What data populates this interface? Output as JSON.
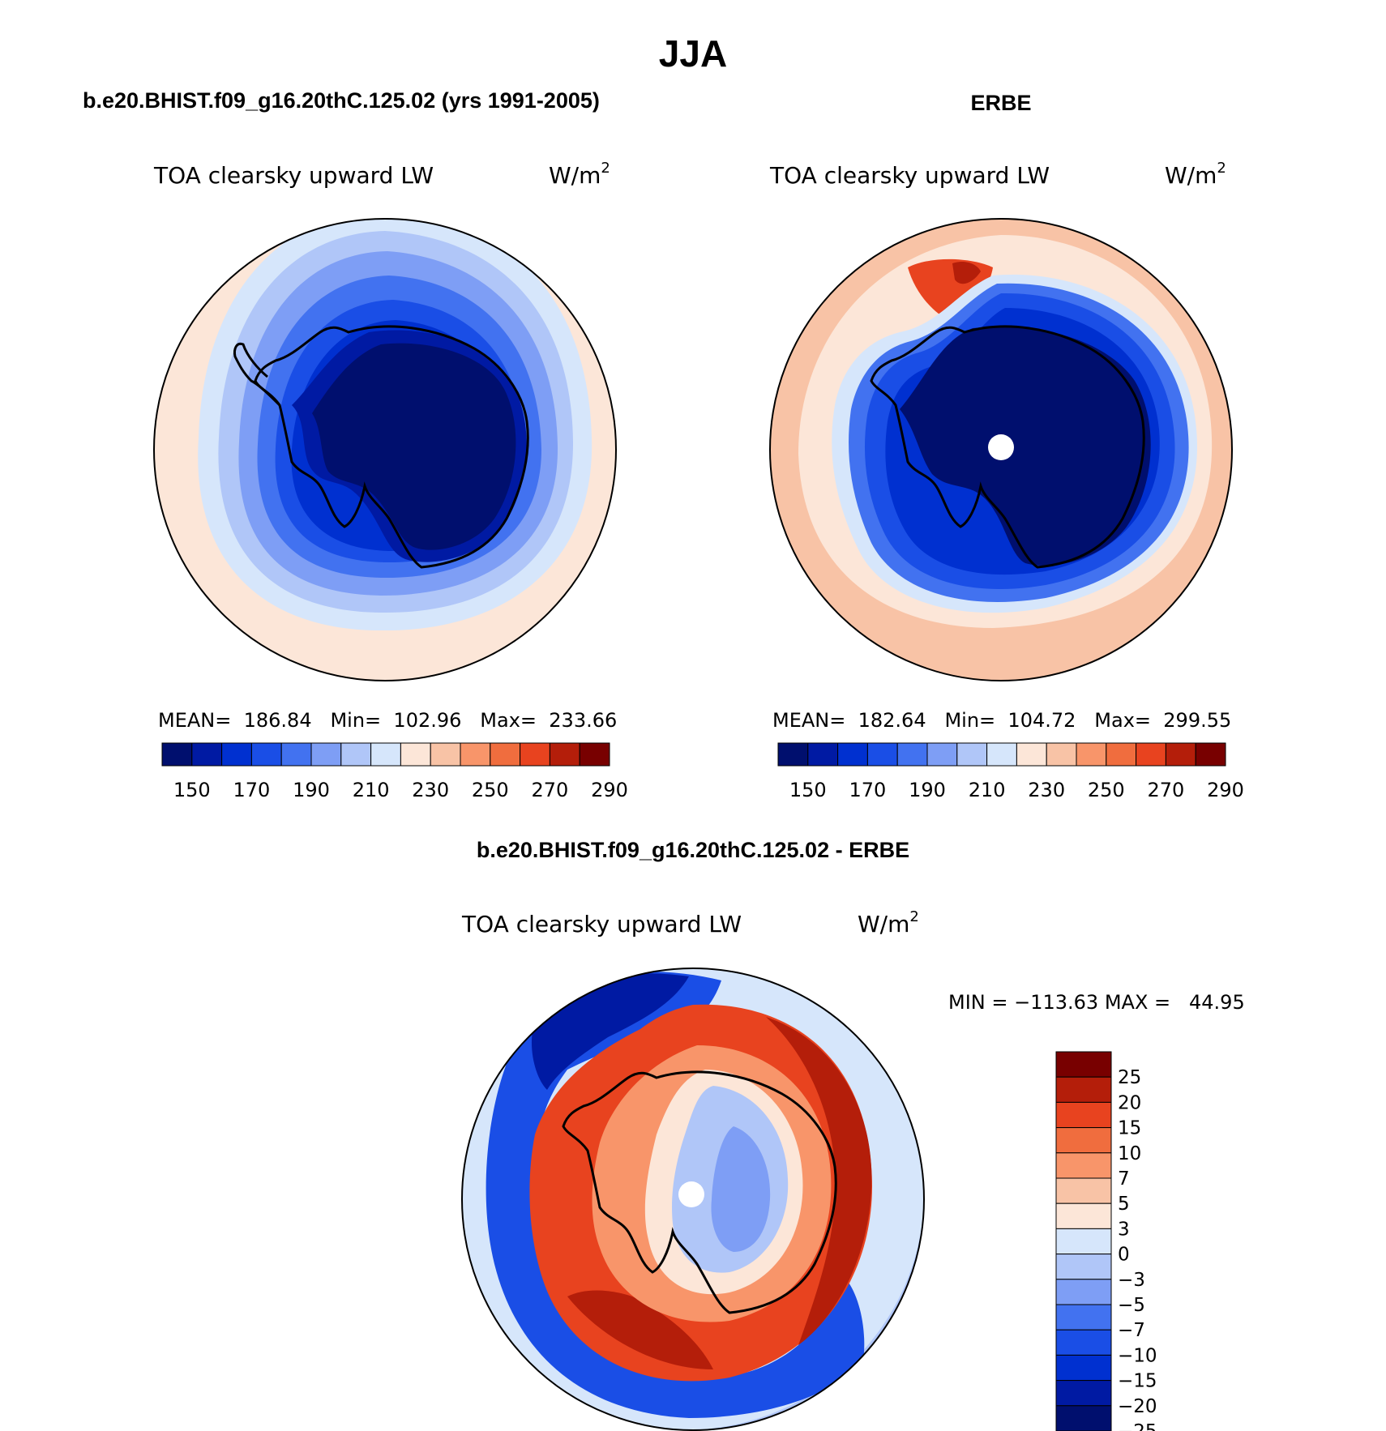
{
  "title": "JJA",
  "colors": {
    "scale": [
      "#000f6e",
      "#001aa3",
      "#0030d0",
      "#1a4ee6",
      "#4272f0",
      "#7e9ef5",
      "#b0c6f8",
      "#d6e6fb",
      "#fce6d8",
      "#f8c3a6",
      "#f8956a",
      "#f06d3e",
      "#e8431f",
      "#b41e0a",
      "#780000"
    ],
    "land_outline": "#000000",
    "background": "#ffffff"
  },
  "panels": {
    "model": {
      "header": "b.e20.BHIST.f09_g16.20thC.125.02 (yrs 1991-2005)",
      "variable": "TOA clearsky upward LW",
      "units_base": "W/m",
      "units_exp": "2",
      "stats": "MEAN=  186.84   Min=  102.96   Max=  233.66",
      "colorbar_ticks": [
        "150",
        "170",
        "190",
        "210",
        "230",
        "250",
        "270",
        "290"
      ]
    },
    "obs": {
      "header": "ERBE",
      "variable": "TOA clearsky upward LW",
      "units_base": "W/m",
      "units_exp": "2",
      "stats": "MEAN=  182.64   Min=  104.72   Max=  299.55",
      "colorbar_ticks": [
        "150",
        "170",
        "190",
        "210",
        "230",
        "250",
        "270",
        "290"
      ]
    },
    "diff": {
      "header": "b.e20.BHIST.f09_g16.20thC.125.02 - ERBE",
      "variable": "TOA clearsky upward LW",
      "units_base": "W/m",
      "units_exp": "2",
      "stats": "MIN = −113.63 MAX =   44.95",
      "colorbar_labels": [
        "25",
        "20",
        "15",
        "10",
        "7",
        "5",
        "3",
        "0",
        "−3",
        "−5",
        "−7",
        "−10",
        "−15",
        "−20",
        "−25"
      ]
    }
  }
}
